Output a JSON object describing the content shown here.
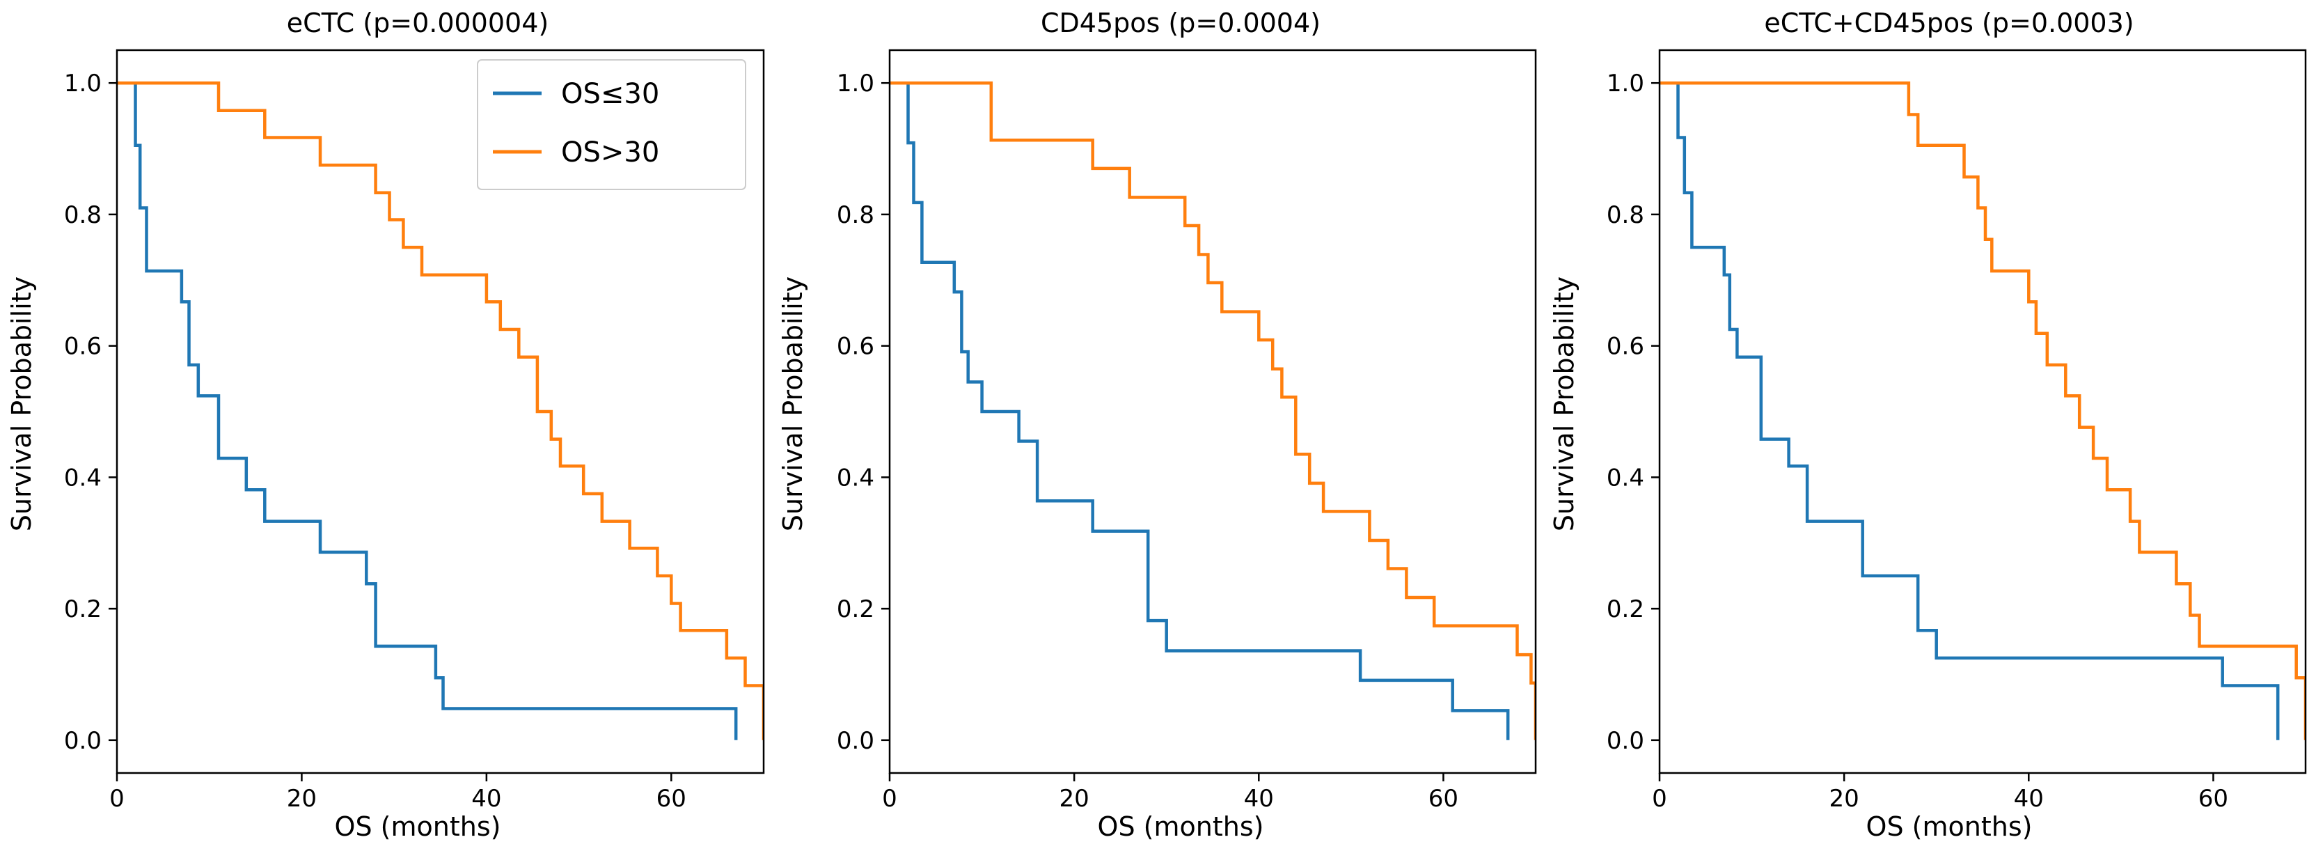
{
  "chart_data": [
    {
      "type": "line",
      "title": "eCTC (p=0.000004)",
      "xlabel": "OS (months)",
      "ylabel": "Survival Probability",
      "xlim": [
        0,
        70
      ],
      "ylim": [
        -0.05,
        1.05
      ],
      "xticks": [
        0,
        20,
        40,
        60
      ],
      "yticks": [
        0.0,
        0.2,
        0.4,
        0.6,
        0.8,
        1.0
      ],
      "xtick_labels": [
        "0",
        "20",
        "40",
        "60"
      ],
      "ytick_labels": [
        "0.0",
        "0.2",
        "0.4",
        "0.6",
        "0.8",
        "1.0"
      ],
      "legend": true,
      "legend_position": "top-right",
      "series": [
        {
          "name": "OS≤30",
          "color": "#1f77b4",
          "step": true,
          "x": [
            0,
            2,
            2.5,
            3.2,
            4,
            7,
            7.8,
            8.8,
            11,
            14,
            16,
            22,
            27,
            28,
            34.5,
            35.3,
            36,
            67
          ],
          "y": [
            1.0,
            0.905,
            0.81,
            0.714,
            0.714,
            0.667,
            0.571,
            0.524,
            0.429,
            0.381,
            0.333,
            0.286,
            0.238,
            0.143,
            0.095,
            0.048,
            0.048,
            0.0
          ]
        },
        {
          "name": "OS>30",
          "color": "#ff7f0e",
          "step": true,
          "x": [
            0,
            11,
            16,
            22,
            28,
            29.5,
            31,
            33,
            40,
            41.5,
            43.5,
            45.5,
            47,
            48,
            50.5,
            52.5,
            55.5,
            58.5,
            60,
            61,
            66,
            68,
            70
          ],
          "y": [
            1.0,
            0.958,
            0.917,
            0.875,
            0.833,
            0.792,
            0.75,
            0.708,
            0.667,
            0.625,
            0.583,
            0.5,
            0.458,
            0.417,
            0.375,
            0.333,
            0.292,
            0.25,
            0.208,
            0.167,
            0.125,
            0.083,
            0.0
          ]
        }
      ]
    },
    {
      "type": "line",
      "title": "CD45pos (p=0.0004)",
      "xlabel": "OS (months)",
      "ylabel": "Survival Probability",
      "xlim": [
        0,
        70
      ],
      "ylim": [
        -0.05,
        1.05
      ],
      "xticks": [
        0,
        20,
        40,
        60
      ],
      "yticks": [
        0.0,
        0.2,
        0.4,
        0.6,
        0.8,
        1.0
      ],
      "xtick_labels": [
        "0",
        "20",
        "40",
        "60"
      ],
      "ytick_labels": [
        "0.0",
        "0.2",
        "0.4",
        "0.6",
        "0.8",
        "1.0"
      ],
      "legend": false,
      "series": [
        {
          "name": "OS≤30",
          "color": "#1f77b4",
          "step": true,
          "x": [
            0,
            2,
            2.6,
            3.5,
            4,
            7,
            7.8,
            8.5,
            10,
            11.5,
            14,
            16,
            22,
            28,
            30,
            51,
            61,
            67
          ],
          "y": [
            1.0,
            0.909,
            0.818,
            0.727,
            0.727,
            0.682,
            0.591,
            0.545,
            0.5,
            0.5,
            0.455,
            0.364,
            0.318,
            0.182,
            0.136,
            0.091,
            0.045,
            0.0
          ]
        },
        {
          "name": "OS>30",
          "color": "#ff7f0e",
          "step": true,
          "x": [
            0,
            11,
            22,
            26,
            32,
            33.5,
            34.5,
            36,
            40,
            41.5,
            42.5,
            44,
            45.5,
            47,
            48,
            52,
            54,
            56,
            59,
            61,
            68,
            69.5,
            70
          ],
          "y": [
            1.0,
            0.913,
            0.87,
            0.826,
            0.783,
            0.739,
            0.696,
            0.652,
            0.609,
            0.565,
            0.522,
            0.435,
            0.391,
            0.348,
            0.348,
            0.304,
            0.261,
            0.217,
            0.174,
            0.174,
            0.13,
            0.087,
            0.0
          ]
        }
      ]
    },
    {
      "type": "line",
      "title": "eCTC+CD45pos (p=0.0003)",
      "xlabel": "OS (months)",
      "ylabel": "Survival Probability",
      "xlim": [
        0,
        70
      ],
      "ylim": [
        -0.05,
        1.05
      ],
      "xticks": [
        0,
        20,
        40,
        60
      ],
      "yticks": [
        0.0,
        0.2,
        0.4,
        0.6,
        0.8,
        1.0
      ],
      "xtick_labels": [
        "0",
        "20",
        "40",
        "60"
      ],
      "ytick_labels": [
        "0.0",
        "0.2",
        "0.4",
        "0.6",
        "0.8",
        "1.0"
      ],
      "legend": false,
      "series": [
        {
          "name": "OS≤30",
          "color": "#1f77b4",
          "step": true,
          "x": [
            0,
            2,
            2.7,
            3.5,
            4,
            7,
            7.6,
            8.4,
            9.5,
            11,
            14,
            16,
            22,
            28,
            30,
            61,
            67
          ],
          "y": [
            1.0,
            0.917,
            0.833,
            0.75,
            0.75,
            0.708,
            0.625,
            0.583,
            0.583,
            0.458,
            0.417,
            0.333,
            0.25,
            0.167,
            0.125,
            0.083,
            0.0
          ]
        },
        {
          "name": "OS>30",
          "color": "#ff7f0e",
          "step": true,
          "x": [
            0,
            27,
            28,
            33,
            34.5,
            35.3,
            36,
            40,
            40.8,
            42,
            44,
            45.5,
            47,
            48.5,
            51,
            52,
            54,
            56,
            57.5,
            58.5,
            69,
            70
          ],
          "y": [
            1.0,
            0.952,
            0.905,
            0.857,
            0.81,
            0.762,
            0.714,
            0.667,
            0.619,
            0.571,
            0.524,
            0.476,
            0.429,
            0.381,
            0.333,
            0.286,
            0.286,
            0.238,
            0.19,
            0.143,
            0.095,
            0.0
          ]
        }
      ]
    }
  ]
}
